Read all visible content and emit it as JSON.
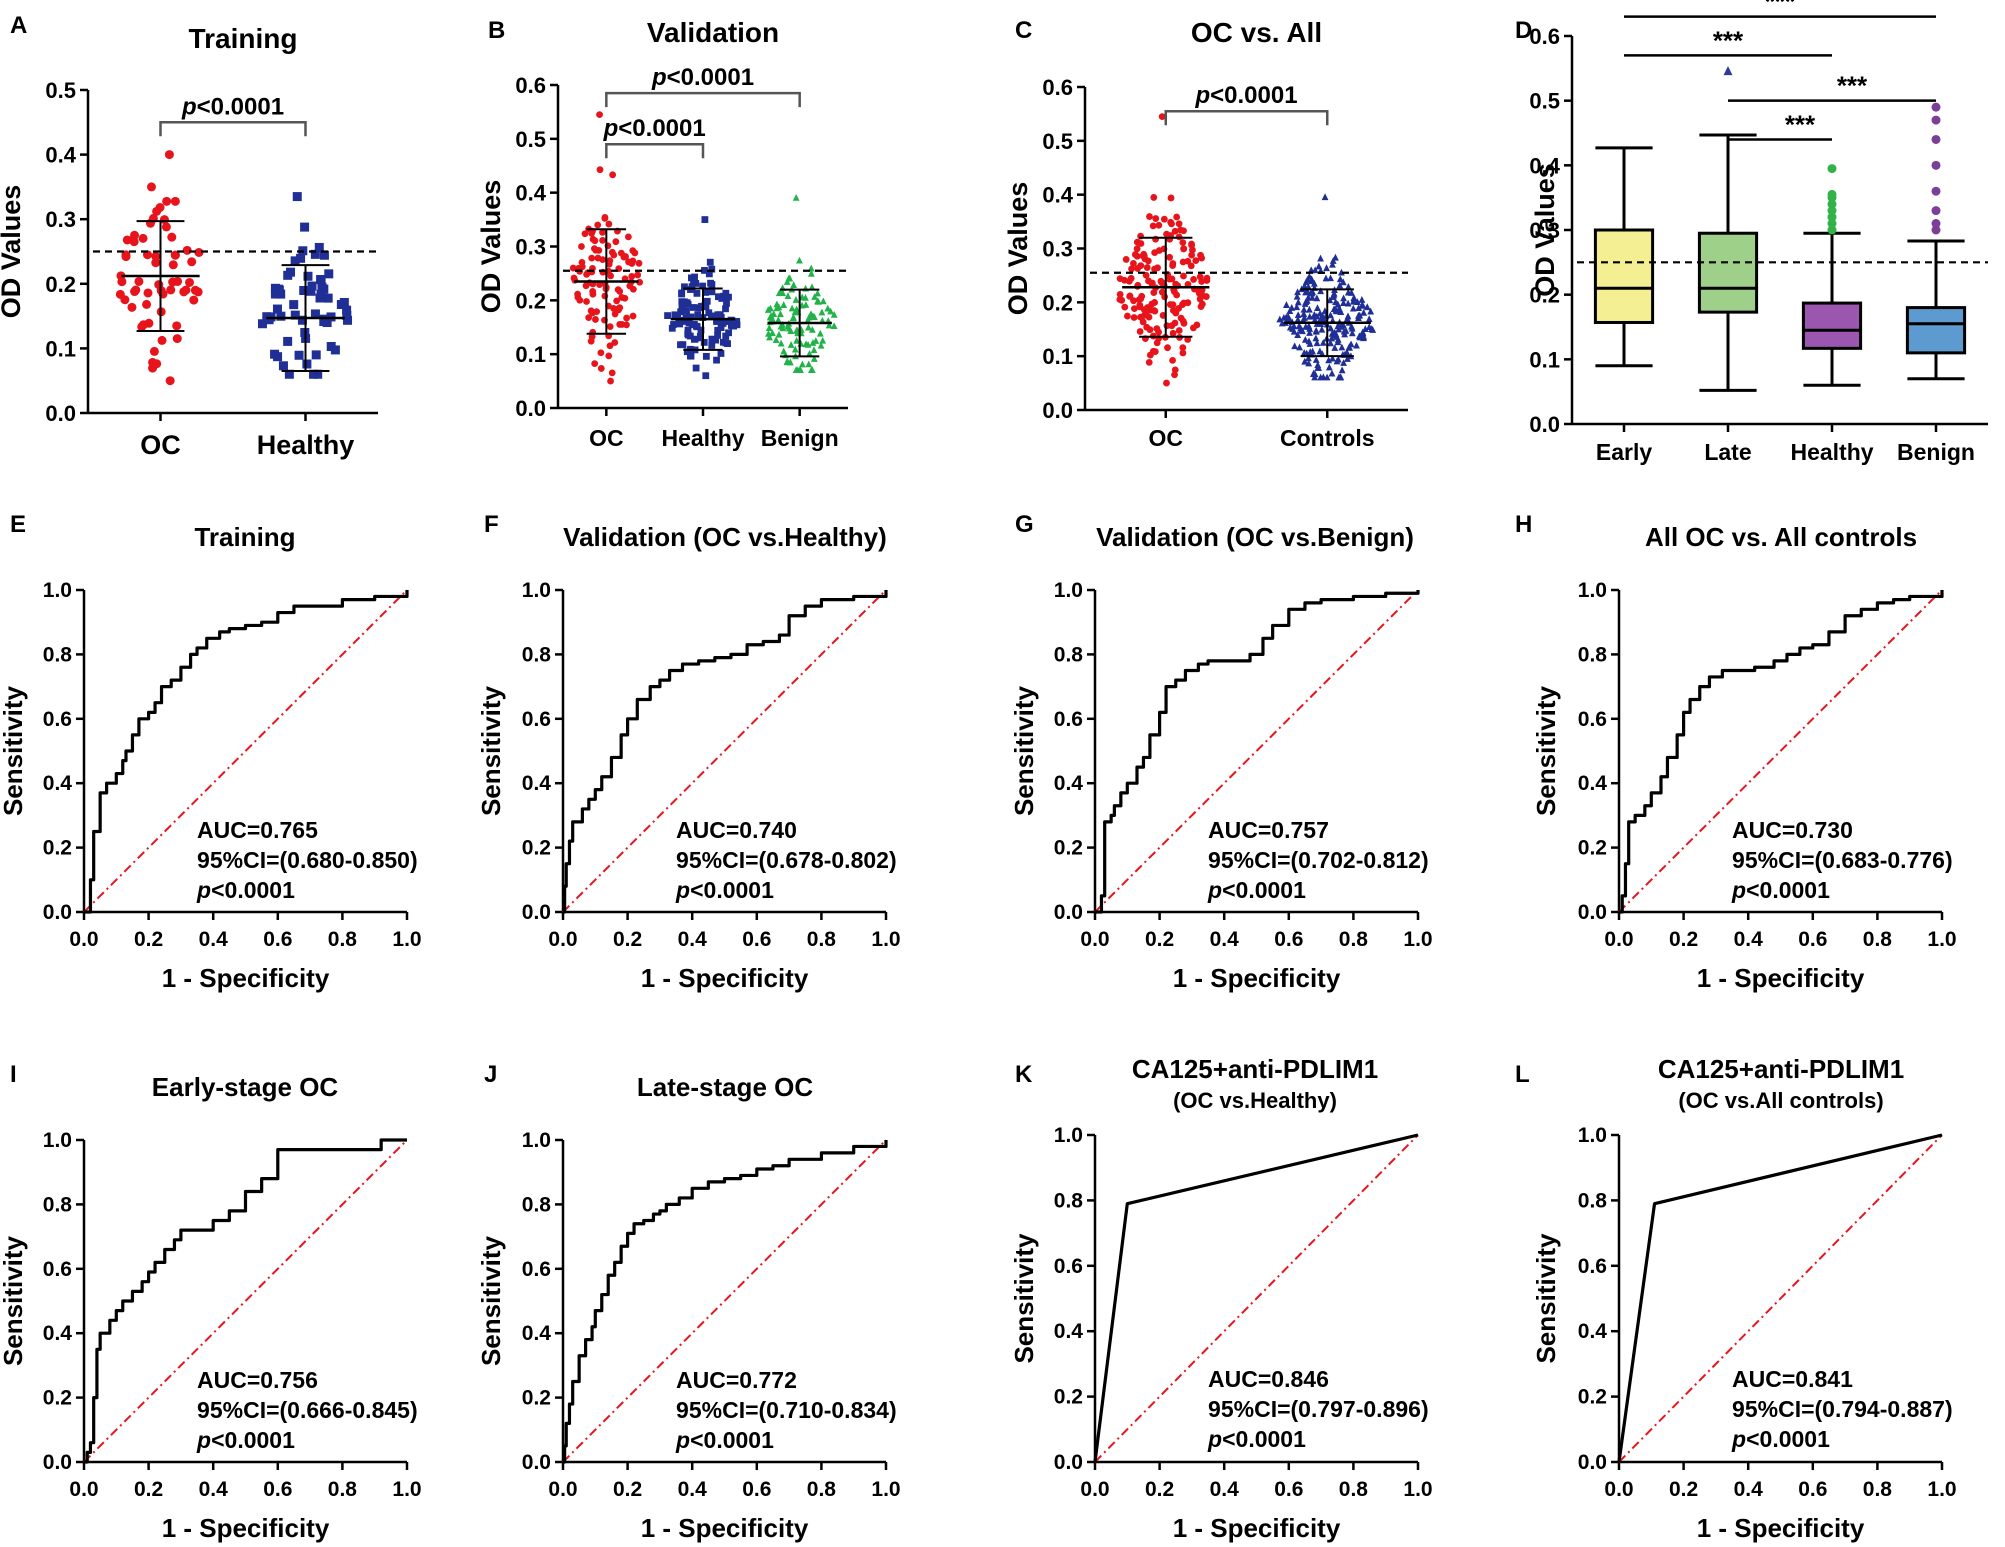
{
  "figure": {
    "colors": {
      "axis": "#000000",
      "oc": "#e8141c",
      "healthy": "#1f2f96",
      "benign": "#22b24a",
      "ref_line": "#e8141c",
      "early_box": "#f4ef92",
      "late_box": "#9ed08a",
      "healthy_box": "#9b57b0",
      "benign_box": "#5c9ad0",
      "whisker": "#555555",
      "healthy_outlier": "#33b24a",
      "benign_outlier": "#7a3f96",
      "late_outlier": "#2b3a9a"
    }
  },
  "chart_data": [
    {
      "panel": "A",
      "type": "scatter",
      "title": "Training",
      "ylabel": "OD Values",
      "ylim": [
        0,
        0.5
      ],
      "yticks": [
        "0.0",
        "0.1",
        "0.2",
        "0.3",
        "0.4",
        "0.5"
      ],
      "categories": [
        "OC",
        "Healthy"
      ],
      "groups": [
        {
          "name": "OC",
          "n": 60,
          "mean": 0.212,
          "sd": 0.085,
          "min": 0.05,
          "max": 0.4,
          "color": "#e8141c",
          "marker": "circle"
        },
        {
          "name": "Healthy",
          "n": 60,
          "mean": 0.147,
          "sd": 0.082,
          "min": 0.06,
          "max": 0.335,
          "color": "#1f2f96",
          "marker": "square"
        }
      ],
      "cutoff": 0.25,
      "comparisons": [
        {
          "from": "OC",
          "to": "Healthy",
          "y": 0.45,
          "p_italic": "p",
          "p_rest": "<0.0001"
        }
      ]
    },
    {
      "panel": "B",
      "type": "scatter",
      "title": "Validation",
      "ylabel": "OD Values",
      "ylim": [
        0,
        0.6
      ],
      "yticks": [
        "0.0",
        "0.1",
        "0.2",
        "0.3",
        "0.4",
        "0.5",
        "0.6"
      ],
      "categories": [
        "OC",
        "Healthy",
        "Benign"
      ],
      "groups": [
        {
          "name": "OC",
          "n": 110,
          "mean": 0.235,
          "sd": 0.097,
          "min": 0.05,
          "max": 0.545,
          "color": "#e8141c",
          "marker": "circle"
        },
        {
          "name": "Healthy",
          "n": 110,
          "mean": 0.165,
          "sd": 0.057,
          "min": 0.06,
          "max": 0.35,
          "color": "#1f2f96",
          "marker": "square"
        },
        {
          "name": "Benign",
          "n": 110,
          "mean": 0.158,
          "sd": 0.062,
          "min": 0.07,
          "max": 0.39,
          "color": "#22b24a",
          "marker": "triangle"
        }
      ],
      "cutoff": 0.255,
      "comparisons": [
        {
          "from": "OC",
          "to": "Healthy",
          "y": 0.49,
          "p_italic": "p",
          "p_rest": "<0.0001"
        },
        {
          "from": "OC",
          "to": "Benign",
          "y": 0.585,
          "p_italic": "p",
          "p_rest": "<0.0001"
        }
      ]
    },
    {
      "panel": "C",
      "type": "scatter",
      "title": "OC vs. All",
      "ylabel": "OD Values",
      "ylim": [
        0,
        0.6
      ],
      "yticks": [
        "0.0",
        "0.1",
        "0.2",
        "0.3",
        "0.4",
        "0.5",
        "0.6"
      ],
      "categories": [
        "OC",
        "Controls"
      ],
      "groups": [
        {
          "name": "OC",
          "n": 170,
          "mean": 0.228,
          "sd": 0.092,
          "min": 0.05,
          "max": 0.545,
          "color": "#e8141c",
          "marker": "circle"
        },
        {
          "name": "Controls",
          "n": 220,
          "mean": 0.162,
          "sd": 0.062,
          "min": 0.06,
          "max": 0.395,
          "color": "#1f2f96",
          "marker": "triangle"
        }
      ],
      "cutoff": 0.255,
      "comparisons": [
        {
          "from": "OC",
          "to": "Controls",
          "y": 0.555,
          "p_italic": "p",
          "p_rest": "<0.0001"
        }
      ]
    },
    {
      "panel": "D",
      "type": "box",
      "title": "",
      "ylabel": "OD Values",
      "ylim": [
        0,
        0.6
      ],
      "yticks": [
        "0.0",
        "0.1",
        "0.2",
        "0.3",
        "0.4",
        "0.5",
        "0.6"
      ],
      "categories": [
        "Early",
        "Late",
        "Healthy",
        "Benign"
      ],
      "boxes": [
        {
          "name": "Early",
          "min": 0.09,
          "q1": 0.157,
          "median": 0.21,
          "q3": 0.3,
          "max": 0.427,
          "fill": "#f4ef92",
          "outliers": []
        },
        {
          "name": "Late",
          "min": 0.052,
          "q1": 0.173,
          "median": 0.21,
          "q3": 0.295,
          "max": 0.447,
          "fill": "#9ed08a",
          "outliers": [
            0.545
          ],
          "outlier_marker": "triangle",
          "outlier_color": "#2b3a9a"
        },
        {
          "name": "Healthy",
          "min": 0.06,
          "q1": 0.117,
          "median": 0.145,
          "q3": 0.187,
          "max": 0.295,
          "fill": "#9b57b0",
          "outliers": [
            0.3,
            0.31,
            0.32,
            0.33,
            0.34,
            0.35,
            0.355,
            0.395
          ],
          "outlier_marker": "circle",
          "outlier_color": "#33b24a"
        },
        {
          "name": "Benign",
          "min": 0.07,
          "q1": 0.11,
          "median": 0.155,
          "q3": 0.18,
          "max": 0.283,
          "fill": "#5c9ad0",
          "outliers": [
            0.3,
            0.31,
            0.33,
            0.36,
            0.4,
            0.44,
            0.47,
            0.49
          ],
          "outlier_marker": "circle",
          "outlier_color": "#7a3f96"
        }
      ],
      "cutoff": 0.25,
      "comparisons": [
        {
          "from": "Early",
          "to": "Benign",
          "y": 0.63,
          "label": "***"
        },
        {
          "from": "Early",
          "to": "Healthy",
          "y": 0.57,
          "label": "***"
        },
        {
          "from": "Late",
          "to": "Benign",
          "y": 0.5,
          "label": "***"
        },
        {
          "from": "Late",
          "to": "Healthy",
          "y": 0.44,
          "label": "***"
        }
      ]
    },
    {
      "panel": "E",
      "type": "roc",
      "title": [
        "Training"
      ],
      "xlabel": "1 - Specificity",
      "ylabel": "Sensitivity",
      "auc": "AUC=0.765",
      "ci": "95%CI=(0.680-0.850)",
      "p_italic": "p",
      "p_rest": "<0.0001",
      "fpr": [
        0,
        0.02,
        0.02,
        0.03,
        0.03,
        0.05,
        0.05,
        0.07,
        0.1,
        0.12,
        0.13,
        0.15,
        0.17,
        0.2,
        0.22,
        0.24,
        0.27,
        0.3,
        0.33,
        0.35,
        0.38,
        0.42,
        0.45,
        0.5,
        0.55,
        0.6,
        0.65,
        0.7,
        0.8,
        0.9,
        1.0
      ],
      "tpr": [
        0,
        0,
        0.1,
        0.15,
        0.25,
        0.32,
        0.37,
        0.4,
        0.43,
        0.47,
        0.5,
        0.55,
        0.6,
        0.62,
        0.65,
        0.7,
        0.72,
        0.76,
        0.8,
        0.82,
        0.85,
        0.87,
        0.88,
        0.89,
        0.9,
        0.93,
        0.95,
        0.95,
        0.97,
        0.98,
        1.0
      ]
    },
    {
      "panel": "F",
      "type": "roc",
      "title": [
        "Validation (OC vs.Healthy)"
      ],
      "xlabel": "1 - Specificity",
      "ylabel": "Sensitivity",
      "auc": "AUC=0.740",
      "ci": "95%CI=(0.678-0.802)",
      "p_italic": "p",
      "p_rest": "<0.0001",
      "fpr": [
        0,
        0.005,
        0.01,
        0.02,
        0.03,
        0.06,
        0.08,
        0.1,
        0.12,
        0.15,
        0.18,
        0.2,
        0.23,
        0.27,
        0.3,
        0.33,
        0.37,
        0.42,
        0.47,
        0.52,
        0.57,
        0.62,
        0.67,
        0.7,
        0.75,
        0.8,
        0.9,
        1.0
      ],
      "tpr": [
        0,
        0.08,
        0.15,
        0.22,
        0.28,
        0.32,
        0.35,
        0.38,
        0.42,
        0.48,
        0.55,
        0.6,
        0.66,
        0.7,
        0.72,
        0.75,
        0.77,
        0.78,
        0.79,
        0.8,
        0.83,
        0.84,
        0.86,
        0.92,
        0.95,
        0.97,
        0.98,
        1.0
      ]
    },
    {
      "panel": "G",
      "type": "roc",
      "title": [
        "Validation (OC vs.Benign)"
      ],
      "xlabel": "1 - Specificity",
      "ylabel": "Sensitivity",
      "auc": "AUC=0.757",
      "ci": "95%CI=(0.702-0.812)",
      "p_italic": "p",
      "p_rest": "<0.0001",
      "fpr": [
        0,
        0.02,
        0.03,
        0.05,
        0.06,
        0.08,
        0.1,
        0.13,
        0.15,
        0.17,
        0.2,
        0.22,
        0.25,
        0.28,
        0.32,
        0.35,
        0.4,
        0.48,
        0.52,
        0.55,
        0.6,
        0.65,
        0.7,
        0.8,
        0.9,
        1.0
      ],
      "tpr": [
        0,
        0.05,
        0.28,
        0.3,
        0.33,
        0.37,
        0.4,
        0.45,
        0.48,
        0.55,
        0.62,
        0.7,
        0.72,
        0.75,
        0.77,
        0.78,
        0.78,
        0.8,
        0.85,
        0.89,
        0.94,
        0.96,
        0.97,
        0.98,
        0.99,
        1.0
      ]
    },
    {
      "panel": "H",
      "type": "roc",
      "title": [
        "All OC vs. All controls"
      ],
      "xlabel": "1 - Specificity",
      "ylabel": "Sensitivity",
      "auc": "AUC=0.730",
      "ci": "95%CI=(0.683-0.776)",
      "p_italic": "p",
      "p_rest": "<0.0001",
      "fpr": [
        0,
        0.01,
        0.02,
        0.03,
        0.05,
        0.08,
        0.1,
        0.13,
        0.15,
        0.18,
        0.2,
        0.22,
        0.25,
        0.28,
        0.32,
        0.36,
        0.42,
        0.48,
        0.52,
        0.56,
        0.6,
        0.65,
        0.7,
        0.75,
        0.8,
        0.85,
        0.9,
        1.0
      ],
      "tpr": [
        0,
        0.05,
        0.15,
        0.28,
        0.3,
        0.33,
        0.37,
        0.42,
        0.48,
        0.55,
        0.62,
        0.66,
        0.7,
        0.73,
        0.75,
        0.75,
        0.76,
        0.78,
        0.8,
        0.82,
        0.83,
        0.87,
        0.92,
        0.94,
        0.96,
        0.97,
        0.98,
        1.0
      ]
    },
    {
      "panel": "I",
      "type": "roc",
      "title": [
        "Early-stage OC"
      ],
      "xlabel": "1 - Specificity",
      "ylabel": "Sensitivity",
      "auc": "AUC=0.756",
      "ci": "95%CI=(0.666-0.845)",
      "p_italic": "p",
      "p_rest": "<0.0001",
      "fpr": [
        0,
        0.01,
        0.02,
        0.03,
        0.04,
        0.05,
        0.06,
        0.08,
        0.1,
        0.12,
        0.15,
        0.18,
        0.2,
        0.22,
        0.25,
        0.28,
        0.3,
        0.35,
        0.4,
        0.45,
        0.5,
        0.55,
        0.6,
        0.9,
        0.92,
        1.0
      ],
      "tpr": [
        0,
        0.03,
        0.06,
        0.2,
        0.35,
        0.4,
        0.4,
        0.44,
        0.47,
        0.5,
        0.53,
        0.56,
        0.59,
        0.62,
        0.66,
        0.69,
        0.72,
        0.72,
        0.75,
        0.78,
        0.84,
        0.88,
        0.97,
        0.97,
        1.0,
        1.0
      ]
    },
    {
      "panel": "J",
      "type": "roc",
      "title": [
        "Late-stage OC"
      ],
      "xlabel": "1 - Specificity",
      "ylabel": "Sensitivity",
      "auc": "AUC=0.772",
      "ci": "95%CI=(0.710-0.834)",
      "p_italic": "p",
      "p_rest": "<0.0001",
      "fpr": [
        0,
        0.005,
        0.01,
        0.02,
        0.03,
        0.05,
        0.07,
        0.09,
        0.1,
        0.12,
        0.14,
        0.16,
        0.18,
        0.2,
        0.22,
        0.25,
        0.28,
        0.3,
        0.32,
        0.36,
        0.4,
        0.45,
        0.5,
        0.55,
        0.6,
        0.65,
        0.7,
        0.8,
        0.9,
        1.0
      ],
      "tpr": [
        0,
        0.05,
        0.12,
        0.18,
        0.25,
        0.33,
        0.38,
        0.42,
        0.47,
        0.52,
        0.58,
        0.62,
        0.67,
        0.71,
        0.74,
        0.75,
        0.77,
        0.78,
        0.8,
        0.82,
        0.85,
        0.87,
        0.88,
        0.89,
        0.91,
        0.92,
        0.94,
        0.96,
        0.98,
        1.0
      ]
    },
    {
      "panel": "K",
      "type": "roc",
      "title": [
        "CA125+anti-PDLIM1",
        "(OC vs.Healthy)"
      ],
      "xlabel": "1 - Specificity",
      "ylabel": "Sensitivity",
      "auc": "AUC=0.846",
      "ci": "95%CI=(0.797-0.896)",
      "p_italic": "p",
      "p_rest": "<0.0001",
      "fpr": [
        0,
        0.1,
        1.0
      ],
      "tpr": [
        0,
        0.79,
        1.0
      ]
    },
    {
      "panel": "L",
      "type": "roc",
      "title": [
        "CA125+anti-PDLIM1",
        "(OC vs.All controls)"
      ],
      "xlabel": "1 - Specificity",
      "ylabel": "Sensitivity",
      "auc": "AUC=0.841",
      "ci": "95%CI=(0.794-0.887)",
      "p_italic": "p",
      "p_rest": "<0.0001",
      "fpr": [
        0,
        0.11,
        1.0
      ],
      "tpr": [
        0,
        0.79,
        1.0
      ]
    }
  ],
  "roc_axis": {
    "ticks": [
      "0.0",
      "0.2",
      "0.4",
      "0.6",
      "0.8",
      "1.0"
    ]
  }
}
